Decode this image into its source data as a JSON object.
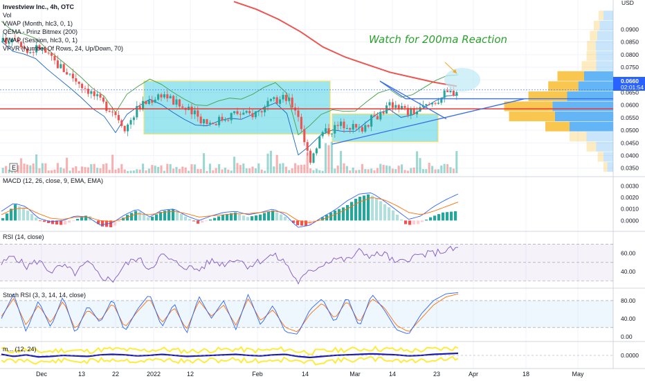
{
  "header": {
    "symbol": "Investview Inc., 4h, OTC",
    "indicators": [
      "Vol",
      "VWAP (Month, hlc3, 0, 1)",
      "QEMA - Prinz Bitmex (200)",
      "VWAP (Session, hlc3, 0, 1)",
      "VPVR (Number Of Rows, 24, Up/Down, 70)"
    ],
    "currency": "USD",
    "hide_button": "E"
  },
  "annotation": "Watch for 200ma Reaction",
  "price_tag": {
    "price": "0.0660",
    "countdown": "02:01:54"
  },
  "colors": {
    "up": "#26a69a",
    "down": "#ef5350",
    "ma200": "#ef5350",
    "box": "#4dd0e1",
    "box_border": "#f3e36b",
    "trend": "#3a6ee8",
    "support": "#e53935",
    "vwap_month": "#43a047",
    "vwap_session": "#1565c0",
    "vpvr_up": "#f9c74f",
    "vpvr_down": "#64b5f6",
    "macd_line": "#2962ff",
    "signal_line": "#ff6d00",
    "rsi_line": "#7e57c2",
    "stoch_k": "#2962ff",
    "stoch_d": "#ff6d00",
    "osc_line": "#1a1ab0",
    "osc_fill": "#ffeb3b"
  },
  "chart_data": [
    {
      "type": "candlestick",
      "title": "Investview Inc., 4h, OTC",
      "ylabel": "USD",
      "ylim": [
        0.033,
        0.1
      ],
      "y_ticks": [
        "0.0900",
        "0.0850",
        "0.0800",
        "0.0750",
        "0.0700",
        "0.0650",
        "0.0600",
        "0.0550",
        "0.0500",
        "0.0450",
        "0.0400",
        "0.0350"
      ],
      "x_ticks": [
        "Dec",
        "13",
        "22",
        "2022",
        "12",
        "Feb",
        "14",
        "Mar",
        "14",
        "23",
        "Apr",
        "18",
        "May"
      ],
      "close_path": [
        0.085,
        0.088,
        0.081,
        0.083,
        0.078,
        0.074,
        0.07,
        0.066,
        0.061,
        0.058,
        0.051,
        0.059,
        0.062,
        0.065,
        0.061,
        0.058,
        0.055,
        0.053,
        0.055,
        0.057,
        0.056,
        0.058,
        0.061,
        0.063,
        0.058,
        0.038,
        0.049,
        0.051,
        0.053,
        0.05,
        0.054,
        0.058,
        0.061,
        0.057,
        0.058,
        0.061,
        0.064,
        0.066
      ],
      "last_price": 0.066,
      "ma200": [
        0.101,
        0.098,
        0.094,
        0.089,
        0.083,
        0.079,
        0.076,
        0.073,
        0.071,
        0.069,
        0.0675
      ],
      "support_line": 0.0585,
      "consolidation_boxes": [
        {
          "x_range": [
            "Dec 31",
            "Feb 21"
          ],
          "price_range": [
            0.0485,
            0.0695
          ]
        },
        {
          "x_range": [
            "Feb 26",
            "Mar 20"
          ],
          "price_range": [
            0.0455,
            0.0565
          ]
        }
      ],
      "triangle": {
        "upper": [
          0.0695,
          0.0625
        ],
        "lower": [
          0.0445,
          0.0625
        ],
        "apex": "Mar 29"
      },
      "vpvr": [
        {
          "price": 0.0955,
          "up": 0.1,
          "down": 0.2
        },
        {
          "price": 0.0915,
          "up": 0.12,
          "down": 0.28
        },
        {
          "price": 0.0875,
          "up": 0.15,
          "down": 0.33
        },
        {
          "price": 0.0835,
          "up": 0.18,
          "down": 0.36
        },
        {
          "price": 0.0795,
          "up": 0.2,
          "down": 0.35
        },
        {
          "price": 0.0755,
          "up": 0.3,
          "down": 0.35
        },
        {
          "price": 0.0715,
          "up": 0.55,
          "down": 0.6
        },
        {
          "price": 0.0675,
          "up": 0.62,
          "down": 0.72
        },
        {
          "price": 0.0635,
          "up": 0.8,
          "down": 0.95
        },
        {
          "price": 0.0595,
          "up": 1.0,
          "down": 1.25
        },
        {
          "price": 0.0555,
          "up": 0.95,
          "down": 1.2
        },
        {
          "price": 0.0515,
          "up": 0.5,
          "down": 0.9
        },
        {
          "price": 0.0475,
          "up": 0.35,
          "down": 0.55
        },
        {
          "price": 0.0435,
          "up": 0.2,
          "down": 0.35
        },
        {
          "price": 0.0395,
          "up": 0.12,
          "down": 0.2
        },
        {
          "price": 0.0355,
          "up": 0.08,
          "down": 0.12
        }
      ]
    },
    {
      "type": "bar",
      "title": "MACD (12, 26, close, 9, EMA, EMA)",
      "y_ticks": [
        "0.0030",
        "0.0020",
        "0.0010",
        "0.0000"
      ],
      "ylim": [
        -0.0007,
        0.0035
      ],
      "histogram_path": [
        0.0002,
        0.0014,
        0.0009,
        0.0,
        -0.0003,
        -0.0004,
        0.0001,
        0.0005,
        -0.0005,
        -0.0006,
        0.0004,
        0.0009,
        0.0002,
        0.0008,
        0.001,
        0.0003,
        -0.0003,
        0.0001,
        0.0005,
        0.0007,
        0.0003,
        0.0005,
        0.0009,
        0.0004,
        -0.0004,
        -0.0005,
        0.0002,
        0.0008,
        0.0012,
        0.002,
        0.0023,
        0.0016,
        0.0008,
        -0.0004,
        -0.0003,
        0.0003,
        0.0007,
        0.0008
      ],
      "macd_path": [
        0.0008,
        0.0015,
        0.0012,
        0.0002,
        -0.0001,
        0.0,
        0.0004,
        0.0003,
        -0.0004,
        -0.0002,
        0.0005,
        0.001,
        0.0003,
        0.0009,
        0.001,
        0.0004,
        0.0,
        0.0004,
        0.0007,
        0.0008,
        0.0005,
        0.0007,
        0.001,
        0.0005,
        -0.0006,
        -0.0004,
        0.0003,
        0.0009,
        0.0017,
        0.0023,
        0.0024,
        0.0017,
        0.0009,
        0.0001,
        0.0004,
        0.0012,
        0.0018,
        0.0023
      ],
      "signal_path": [
        0.0005,
        0.001,
        0.0011,
        0.0006,
        0.0002,
        0.0001,
        0.0003,
        0.0003,
        0.0,
        -0.0001,
        0.0002,
        0.0006,
        0.0005,
        0.0007,
        0.0008,
        0.0006,
        0.0003,
        0.0004,
        0.0005,
        0.0006,
        0.0006,
        0.0007,
        0.0008,
        0.0007,
        0.0,
        -0.0002,
        0.0001,
        0.0005,
        0.001,
        0.0016,
        0.002,
        0.0018,
        0.0013,
        0.0007,
        0.0005,
        0.0008,
        0.0012,
        0.0016
      ]
    },
    {
      "type": "line",
      "title": "RSI (14, close)",
      "y_ticks": [
        "60.00",
        "40.00"
      ],
      "ylim": [
        25,
        80
      ],
      "bands": [
        70,
        50,
        30
      ],
      "path": [
        48,
        58,
        45,
        52,
        40,
        46,
        38,
        50,
        35,
        30,
        47,
        55,
        43,
        58,
        50,
        45,
        42,
        52,
        48,
        55,
        46,
        52,
        58,
        50,
        28,
        40,
        48,
        55,
        52,
        62,
        57,
        60,
        48,
        55,
        58,
        60,
        63,
        65
      ]
    },
    {
      "type": "line",
      "title": "Stoch RSI (3, 3, 14, 14, close)",
      "y_ticks": [
        "80.00",
        "40.00",
        "0.00"
      ],
      "ylim": [
        -5,
        100
      ],
      "bands": [
        80,
        20
      ],
      "k_path": [
        40,
        95,
        10,
        80,
        20,
        90,
        5,
        70,
        30,
        85,
        10,
        60,
        95,
        20,
        75,
        5,
        90,
        40,
        80,
        15,
        95,
        25,
        70,
        10,
        5,
        60,
        85,
        30,
        90,
        20,
        95,
        60,
        15,
        5,
        50,
        80,
        95,
        98
      ],
      "d_path": [
        45,
        85,
        25,
        70,
        30,
        80,
        15,
        60,
        35,
        75,
        20,
        55,
        85,
        30,
        65,
        15,
        80,
        45,
        70,
        25,
        85,
        35,
        60,
        20,
        10,
        50,
        75,
        40,
        80,
        30,
        85,
        65,
        25,
        10,
        40,
        70,
        88,
        95
      ]
    },
    {
      "type": "area",
      "title": "m... (12, 24)",
      "y_ticks": [
        "0.0000"
      ],
      "ylim": [
        -1,
        1
      ],
      "line_path": [
        0.1,
        -0.1,
        0.05,
        -0.15,
        -0.1,
        0.0,
        -0.05,
        -0.1,
        0.05,
        0.1,
        0.05,
        -0.05,
        0.0,
        0.1,
        0.0,
        -0.1,
        -0.05,
        0.0,
        0.05,
        0.1,
        0.0,
        -0.05,
        0.05,
        0.1,
        -0.1,
        -0.2,
        -0.1,
        0.0,
        0.05,
        0.1,
        0.15,
        0.1,
        0.05,
        -0.05,
        0.0,
        0.1,
        0.15,
        0.2
      ]
    }
  ]
}
